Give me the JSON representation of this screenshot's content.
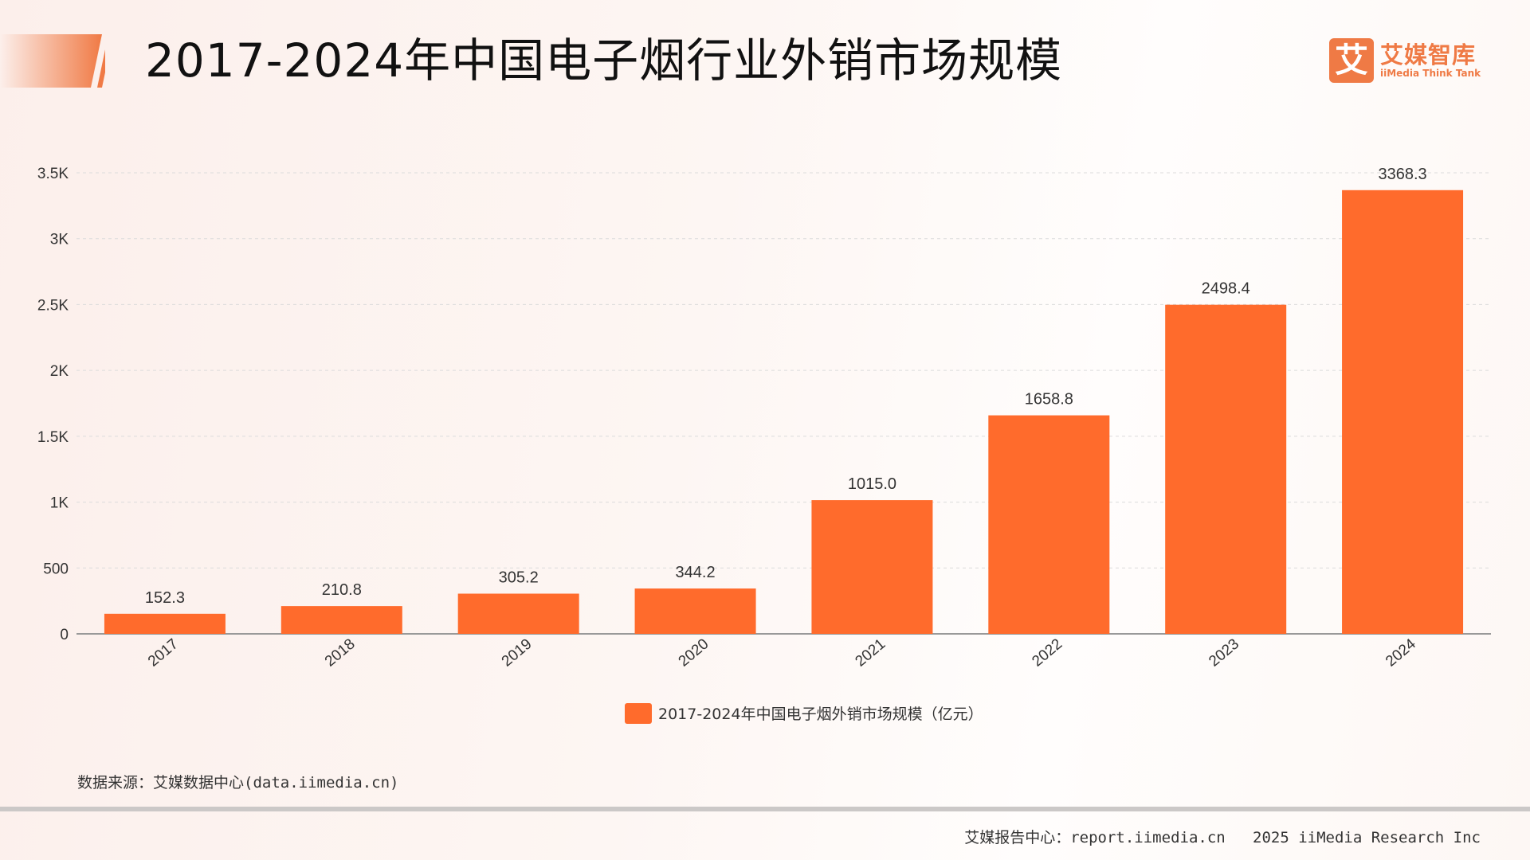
{
  "header": {
    "title": "2017-2024年中国电子烟行业外销市场规模"
  },
  "logo": {
    "mark": "艾",
    "name_cn": "艾媒智库",
    "name_en": "iiMedia Think Tank"
  },
  "chart_data": {
    "type": "bar",
    "title": "2017-2024年中国电子烟行业外销市场规模",
    "categories": [
      "2017",
      "2018",
      "2019",
      "2020",
      "2021",
      "2022",
      "2023",
      "2024"
    ],
    "series": [
      {
        "name": "2017-2024年中国电子烟外销市场规模（亿元）",
        "values": [
          152.3,
          210.8,
          305.2,
          344.2,
          1015.0,
          1658.8,
          2498.4,
          3368.3
        ],
        "labels": [
          "152.3",
          "210.8",
          "305.2",
          "344.2",
          "1015.0",
          "1658.8",
          "2498.4",
          "3368.3"
        ]
      }
    ],
    "ylim": [
      0,
      3500
    ],
    "yticks": [
      0,
      500,
      1000,
      1500,
      2000,
      2500,
      3000,
      3500
    ],
    "ytick_labels": [
      "0",
      "500",
      "1K",
      "1.5K",
      "2K",
      "2.5K",
      "3K",
      "3.5K"
    ],
    "xlabel": "",
    "ylabel": "",
    "grid": true,
    "legend_position": "bottom-center",
    "color": "#ff6b2c"
  },
  "legend": {
    "label": "2017-2024年中国电子烟外销市场规模（亿元）"
  },
  "source": "数据来源：艾媒数据中心(data.iimedia.cn)",
  "footer": "艾媒报告中心：report.iimedia.cn   2025 iiMedia Research Inc"
}
